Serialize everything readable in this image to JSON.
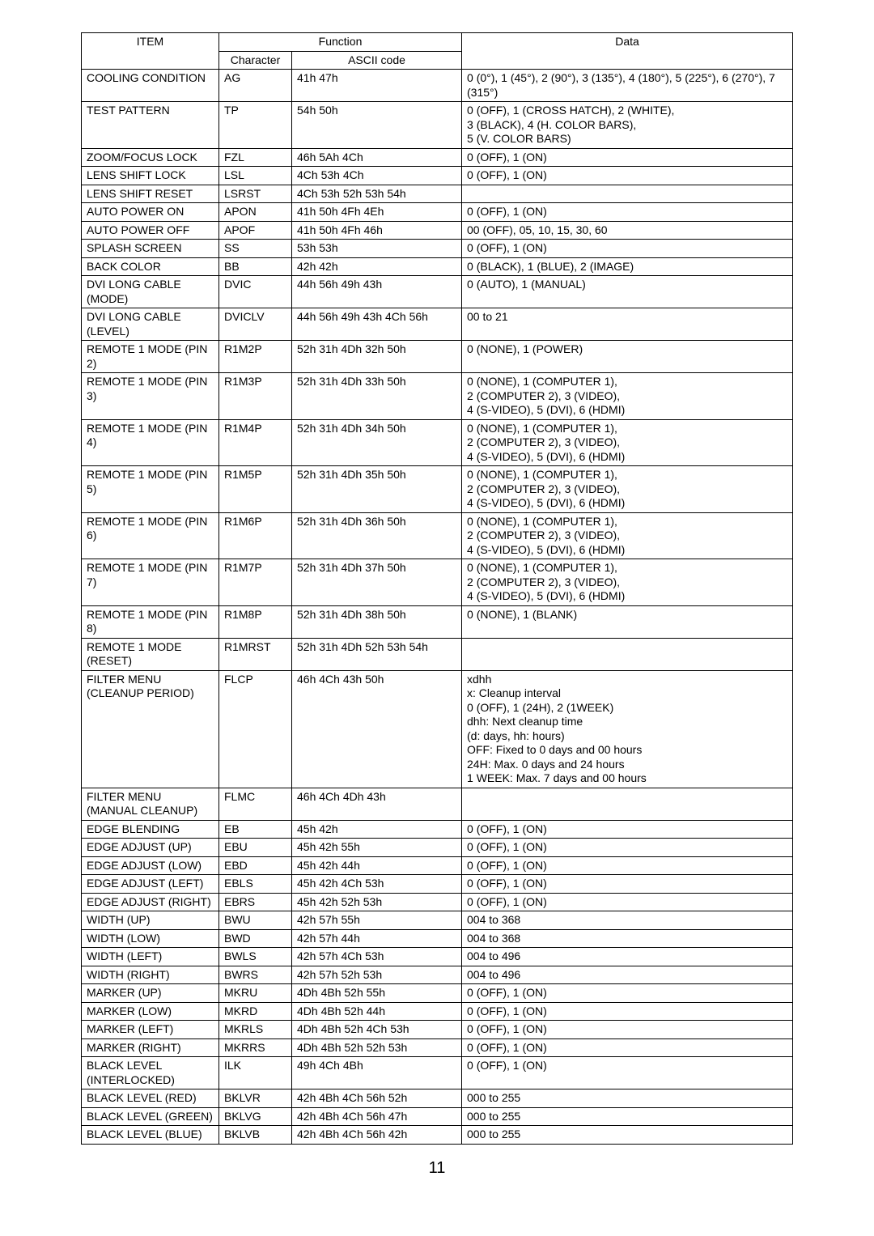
{
  "headers": {
    "item": "ITEM",
    "function": "Function",
    "character": "Character",
    "ascii": "ASCII code",
    "data": "Data"
  },
  "pageNumber": "11",
  "rows": [
    {
      "item": "COOLING CONDITION",
      "char": "AG",
      "ascii": "41h  47h",
      "data": "0 (0°), 1 (45°), 2 (90°), 3 (135°), 4 (180°), 5 (225°), 6 (270°), 7 (315°)"
    },
    {
      "item": "TEST PATTERN",
      "char": "TP",
      "ascii": "54h  50h",
      "data": "0 (OFF), 1 (CROSS HATCH), 2 (WHITE),\n3 (BLACK), 4 (H. COLOR BARS),\n5 (V. COLOR BARS)"
    },
    {
      "item": "ZOOM/FOCUS LOCK",
      "char": "FZL",
      "ascii": "46h  5Ah  4Ch",
      "data": "0 (OFF),  1 (ON)"
    },
    {
      "item": "LENS SHIFT LOCK",
      "char": "LSL",
      "ascii": "4Ch  53h  4Ch",
      "data": "0 (OFF),  1 (ON)"
    },
    {
      "item": "LENS SHIFT RESET",
      "char": "LSRST",
      "ascii": "4Ch  53h  52h  53h  54h",
      "data": ""
    },
    {
      "item": "AUTO POWER ON",
      "char": "APON",
      "ascii": "41h  50h  4Fh  4Eh",
      "data": "0 (OFF), 1 (ON)"
    },
    {
      "item": "AUTO POWER OFF",
      "char": "APOF",
      "ascii": "41h  50h  4Fh  46h",
      "data": "00 (OFF), 05, 10, 15, 30, 60"
    },
    {
      "item": "SPLASH SCREEN",
      "char": "SS",
      "ascii": "53h  53h",
      "data": "0 (OFF), 1 (ON)"
    },
    {
      "item": "BACK COLOR",
      "char": "BB",
      "ascii": "42h  42h",
      "data": "0 (BLACK), 1 (BLUE), 2 (IMAGE)"
    },
    {
      "item": "DVI LONG CABLE (MODE)",
      "char": "DVIC",
      "ascii": "44h  56h  49h  43h",
      "data": "0 (AUTO), 1 (MANUAL)"
    },
    {
      "item": "DVI LONG CABLE (LEVEL)",
      "char": "DVICLV",
      "ascii": "44h  56h  49h  43h  4Ch  56h",
      "data": "00 to 21"
    },
    {
      "item": "REMOTE 1 MODE (PIN 2)",
      "char": "R1M2P",
      "ascii": "52h  31h  4Dh  32h  50h",
      "data": "0 (NONE), 1 (POWER)"
    },
    {
      "item": "REMOTE 1 MODE (PIN 3)",
      "char": "R1M3P",
      "ascii": "52h  31h  4Dh  33h  50h",
      "data": "0 (NONE), 1 (COMPUTER 1),\n2 (COMPUTER 2), 3 (VIDEO),\n4 (S-VIDEO), 5 (DVI), 6 (HDMI)"
    },
    {
      "item": "REMOTE 1 MODE (PIN 4)",
      "char": "R1M4P",
      "ascii": "52h  31h  4Dh  34h  50h",
      "data": "0 (NONE), 1 (COMPUTER 1),\n2 (COMPUTER 2), 3 (VIDEO),\n4 (S-VIDEO), 5 (DVI), 6 (HDMI)"
    },
    {
      "item": "REMOTE 1 MODE (PIN 5)",
      "char": "R1M5P",
      "ascii": "52h  31h  4Dh  35h  50h",
      "data": "0 (NONE), 1 (COMPUTER 1),\n2 (COMPUTER 2), 3 (VIDEO),\n4 (S-VIDEO), 5 (DVI), 6 (HDMI)"
    },
    {
      "item": "REMOTE 1 MODE (PIN 6)",
      "char": "R1M6P",
      "ascii": "52h  31h  4Dh  36h  50h",
      "data": "0 (NONE), 1 (COMPUTER 1),\n2 (COMPUTER 2), 3 (VIDEO),\n4 (S-VIDEO), 5 (DVI), 6 (HDMI)"
    },
    {
      "item": "REMOTE 1 MODE (PIN 7)",
      "char": "R1M7P",
      "ascii": "52h  31h  4Dh  37h  50h",
      "data": "0 (NONE), 1 (COMPUTER 1),\n2 (COMPUTER 2), 3 (VIDEO),\n4 (S-VIDEO), 5 (DVI),  6 (HDMI)"
    },
    {
      "item": "REMOTE 1 MODE (PIN 8)",
      "char": "R1M8P",
      "ascii": "52h  31h  4Dh  38h  50h",
      "data": "0 (NONE), 1 (BLANK)"
    },
    {
      "item": "REMOTE 1 MODE (RESET)",
      "char": "R1MRST",
      "ascii": "52h 31h  4Dh 52h  53h  54h",
      "data": ""
    },
    {
      "item": "FILTER MENU (CLEANUP PERIOD)",
      "char": "FLCP",
      "ascii": "46h  4Ch  43h  50h",
      "data": "xdhh\nx: Cleanup interval\n0 (OFF), 1 (24H), 2 (1WEEK)\ndhh: Next cleanup time\n(d: days, hh: hours)\nOFF:  Fixed to 0 days and 00 hours\n24H: Max. 0 days and 24 hours\n1 WEEK: Max. 7 days and 00 hours"
    },
    {
      "item": "FILTER MENU (MANUAL CLEANUP)",
      "char": "FLMC",
      "ascii": "46h  4Ch  4Dh  43h",
      "data": ""
    },
    {
      "item": "EDGE BLENDING",
      "char": "EB",
      "ascii": "45h  42h",
      "data": "0 (OFF), 1 (ON)"
    },
    {
      "item": "EDGE ADJUST (UP)",
      "char": "EBU",
      "ascii": "45h  42h  55h",
      "data": "0 (OFF), 1 (ON)"
    },
    {
      "item": "EDGE ADJUST (LOW)",
      "char": "EBD",
      "ascii": "45h  42h  44h",
      "data": "0 (OFF), 1 (ON)"
    },
    {
      "item": "EDGE ADJUST (LEFT)",
      "char": "EBLS",
      "ascii": "45h  42h  4Ch  53h",
      "data": "0 (OFF), 1 (ON)"
    },
    {
      "item": "EDGE ADJUST (RIGHT)",
      "char": "EBRS",
      "ascii": "45h  42h  52h  53h",
      "data": "0 (OFF), 1 (ON)"
    },
    {
      "item": "WIDTH (UP)",
      "char": "BWU",
      "ascii": "42h  57h  55h",
      "data": "004 to 368"
    },
    {
      "item": "WIDTH (LOW)",
      "char": "BWD",
      "ascii": "42h  57h  44h",
      "data": "004 to 368"
    },
    {
      "item": "WIDTH (LEFT)",
      "char": "BWLS",
      "ascii": "42h  57h  4Ch  53h",
      "data": "004 to 496"
    },
    {
      "item": "WIDTH (RIGHT)",
      "char": "BWRS",
      "ascii": "42h  57h  52h  53h",
      "data": "004 to 496"
    },
    {
      "item": "MARKER (UP)",
      "char": "MKRU",
      "ascii": "4Dh  4Bh  52h  55h",
      "data": "0 (OFF), 1 (ON)"
    },
    {
      "item": "MARKER (LOW)",
      "char": "MKRD",
      "ascii": "4Dh  4Bh  52h  44h",
      "data": "0 (OFF), 1 (ON)"
    },
    {
      "item": "MARKER (LEFT)",
      "char": "MKRLS",
      "ascii": "4Dh  4Bh  52h  4Ch  53h",
      "data": "0 (OFF), 1 (ON)"
    },
    {
      "item": "MARKER (RIGHT)",
      "char": "MKRRS",
      "ascii": "4Dh  4Bh  52h  52h  53h",
      "data": "0 (OFF), 1 (ON)"
    },
    {
      "item": "BLACK LEVEL (INTERLOCKED)",
      "char": "ILK",
      "ascii": "49h  4Ch  4Bh",
      "data": "0 (OFF), 1 (ON)"
    },
    {
      "item": "BLACK LEVEL (RED)",
      "char": "BKLVR",
      "ascii": "42h  4Bh  4Ch  56h  52h",
      "data": "000 to 255"
    },
    {
      "item": "BLACK LEVEL (GREEN)",
      "char": "BKLVG",
      "ascii": "42h  4Bh  4Ch  56h  47h",
      "data": "000 to 255"
    },
    {
      "item": "BLACK LEVEL (BLUE)",
      "char": "BKLVB",
      "ascii": "42h  4Bh  4Ch  56h  42h",
      "data": "000 to 255"
    }
  ]
}
